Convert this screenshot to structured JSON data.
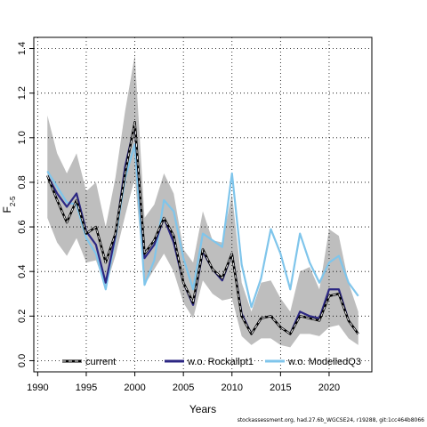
{
  "chart_data": {
    "type": "line",
    "xlabel": "Years",
    "ylabel_main": "F",
    "ylabel_sub": "2-5",
    "xlim": [
      1989.6,
      2024.4
    ],
    "ylim": [
      -0.05,
      1.45
    ],
    "xticks": [
      1990,
      1995,
      2000,
      2005,
      2010,
      2015,
      2020
    ],
    "yticks": [
      0.0,
      0.2,
      0.4,
      0.6,
      0.8,
      1.0,
      1.2,
      1.4
    ],
    "ytick_labels": [
      "0.0",
      "0.2",
      "0.4",
      "0.6",
      "0.8",
      "1.0",
      "1.2",
      "1.4"
    ],
    "grid": true,
    "legend_position": "bottom",
    "x": [
      1991,
      1992,
      1993,
      1994,
      1995,
      1996,
      1997,
      1998,
      1999,
      2000,
      2001,
      2002,
      2003,
      2004,
      2005,
      2006,
      2007,
      2008,
      2009,
      2010,
      2011,
      2012,
      2013,
      2014,
      2015,
      2016,
      2017,
      2018,
      2019,
      2020,
      2021,
      2022,
      2023
    ],
    "band": {
      "color": "#bebebe",
      "lower": [
        0.64,
        0.53,
        0.47,
        0.55,
        0.44,
        0.45,
        0.33,
        0.47,
        0.65,
        0.82,
        0.34,
        0.41,
        0.48,
        0.4,
        0.26,
        0.19,
        0.36,
        0.3,
        0.27,
        0.28,
        0.11,
        0.07,
        0.1,
        0.1,
        0.07,
        0.06,
        0.12,
        0.12,
        0.11,
        0.15,
        0.16,
        0.1,
        0.07
      ],
      "upper": [
        1.1,
        0.93,
        0.84,
        0.93,
        0.76,
        0.8,
        0.6,
        0.82,
        1.12,
        1.37,
        0.64,
        0.7,
        0.84,
        0.75,
        0.5,
        0.44,
        0.67,
        0.54,
        0.53,
        0.75,
        0.35,
        0.22,
        0.35,
        0.36,
        0.28,
        0.22,
        0.4,
        0.42,
        0.32,
        0.59,
        0.56,
        0.35,
        0.22
      ]
    },
    "series": [
      {
        "name": "current",
        "color": "#000000",
        "values": [
          0.83,
          0.72,
          0.62,
          0.72,
          0.57,
          0.6,
          0.44,
          0.57,
          0.84,
          1.07,
          0.48,
          0.54,
          0.64,
          0.56,
          0.35,
          0.26,
          0.5,
          0.41,
          0.37,
          0.48,
          0.2,
          0.12,
          0.19,
          0.2,
          0.15,
          0.12,
          0.2,
          0.19,
          0.18,
          0.29,
          0.3,
          0.18,
          0.12
        ]
      },
      {
        "name": "w.o. Rockallpt1",
        "color": "#2c2783",
        "values": [
          0.83,
          0.75,
          0.69,
          0.75,
          0.58,
          0.52,
          0.35,
          0.56,
          0.87,
          1.06,
          0.46,
          0.52,
          0.64,
          0.53,
          0.35,
          0.25,
          0.49,
          0.41,
          0.36,
          0.48,
          0.21,
          0.12,
          0.19,
          0.2,
          0.15,
          0.12,
          0.22,
          0.2,
          0.19,
          0.32,
          0.32,
          0.18,
          0.12
        ]
      },
      {
        "name": "w.o. ModelledQ3",
        "color": "#7fc5eb",
        "values": [
          0.85,
          0.78,
          0.71,
          0.7,
          0.55,
          0.48,
          0.32,
          0.55,
          0.82,
          0.97,
          0.34,
          0.45,
          0.72,
          0.67,
          0.46,
          0.32,
          0.57,
          0.54,
          0.51,
          0.84,
          0.43,
          0.24,
          0.37,
          0.59,
          0.48,
          0.32,
          0.57,
          0.44,
          0.35,
          0.44,
          0.47,
          0.35,
          0.29
        ]
      }
    ]
  },
  "footer": {
    "text": "stockassessment.org, had.27.6b_WGCSE24, r19288, git:1cc464b8066"
  }
}
